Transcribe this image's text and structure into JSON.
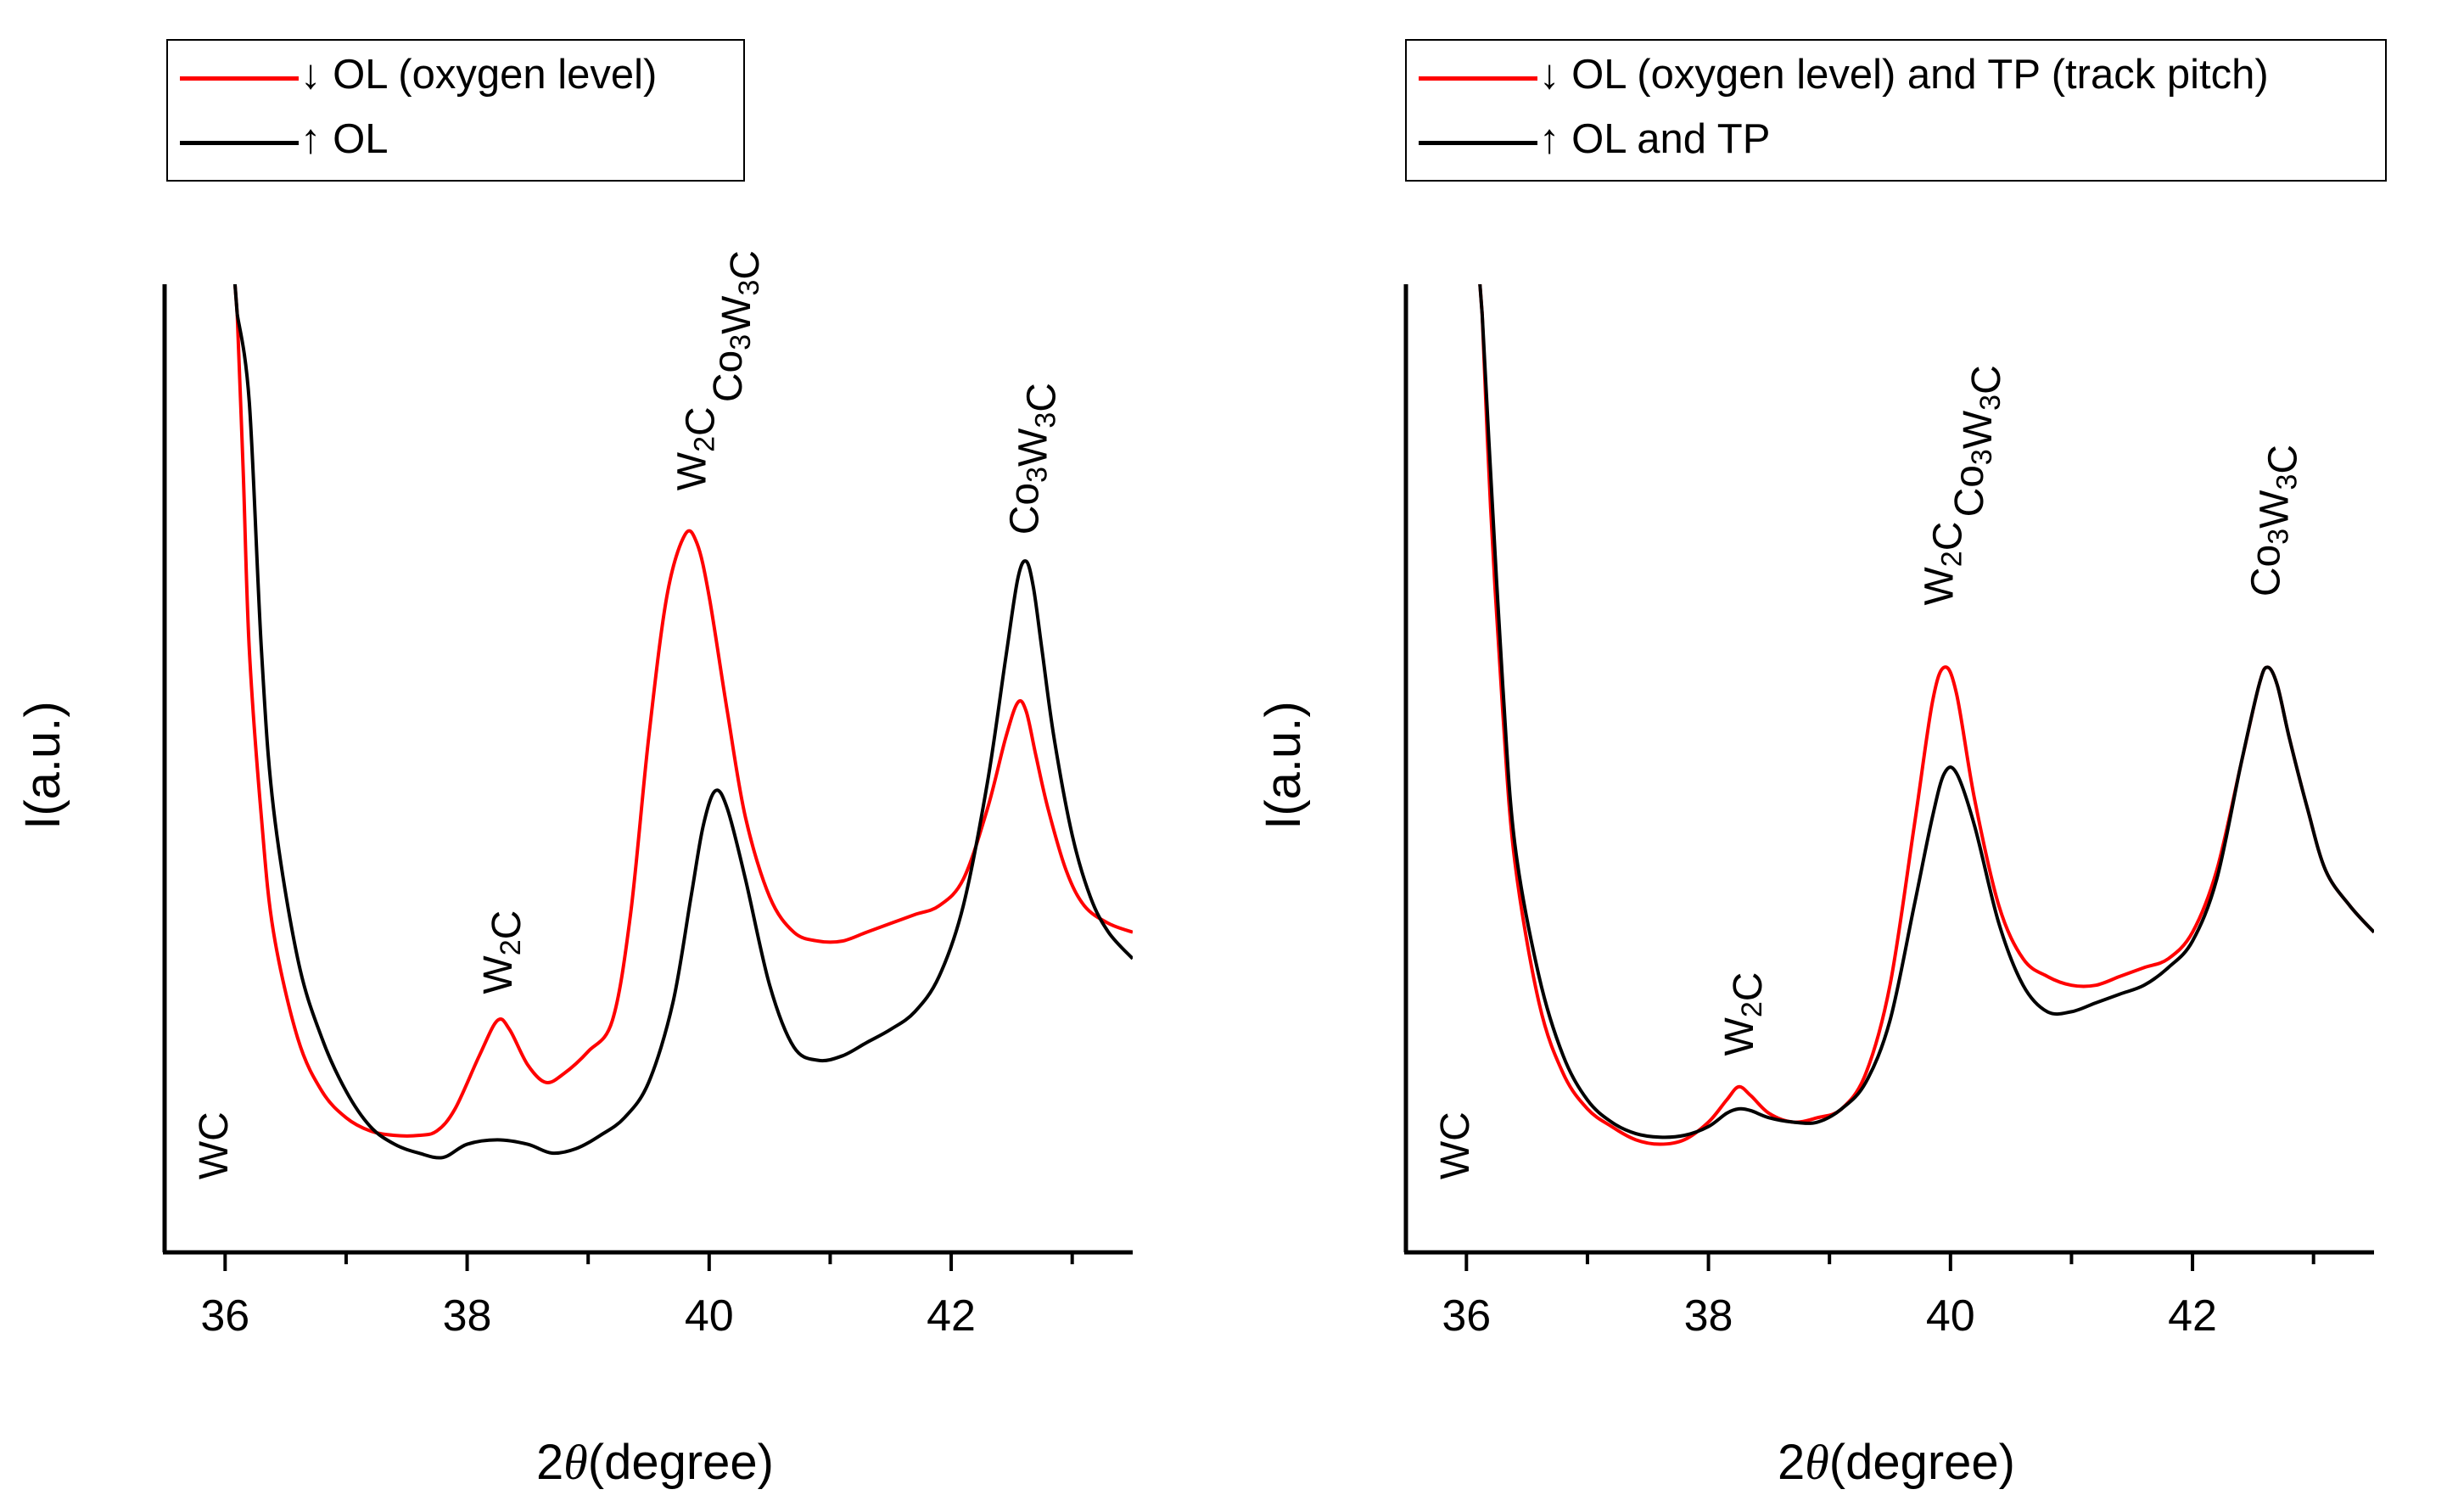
{
  "chart_data": [
    {
      "type": "line",
      "panel": "left",
      "xlabel_prefix": "2",
      "xlabel_symbol": "θ",
      "xlabel_suffix": "(degree)",
      "ylabel": "I(a.u.)",
      "xlim": [
        35.5,
        43.5
      ],
      "ylim": [
        0,
        1
      ],
      "x_ticks": [
        36,
        38,
        40,
        42
      ],
      "y_ticks": [],
      "grid": false,
      "legend_position": "top-left",
      "colors": {
        "red": "#ff0000",
        "black": "#000000"
      },
      "series": [
        {
          "name": "↓ OL (oxygen level)",
          "color": "#ff0000",
          "x": [
            36.1,
            36.15,
            36.2,
            36.3,
            36.4,
            36.6,
            36.8,
            37.0,
            37.2,
            37.4,
            37.6,
            37.75,
            37.9,
            38.1,
            38.25,
            38.35,
            38.5,
            38.65,
            38.8,
            39.0,
            39.2,
            39.35,
            39.5,
            39.65,
            39.8,
            39.9,
            40.0,
            40.15,
            40.3,
            40.5,
            40.7,
            40.9,
            41.1,
            41.3,
            41.5,
            41.7,
            41.9,
            42.1,
            42.3,
            42.45,
            42.55,
            42.62,
            42.7,
            42.8,
            42.95,
            43.1,
            43.3,
            43.5
          ],
          "y": [
            1.0,
            0.82,
            0.62,
            0.43,
            0.3,
            0.18,
            0.12,
            0.09,
            0.075,
            0.07,
            0.07,
            0.075,
            0.1,
            0.16,
            0.2,
            0.19,
            0.15,
            0.13,
            0.14,
            0.165,
            0.2,
            0.32,
            0.52,
            0.68,
            0.75,
            0.74,
            0.68,
            0.55,
            0.43,
            0.34,
            0.3,
            0.29,
            0.29,
            0.3,
            0.31,
            0.32,
            0.33,
            0.36,
            0.44,
            0.52,
            0.56,
            0.55,
            0.5,
            0.44,
            0.37,
            0.33,
            0.31,
            0.3
          ]
        },
        {
          "name": "↑ OL",
          "color": "#000000",
          "x": [
            36.1,
            36.2,
            36.3,
            36.4,
            36.6,
            36.8,
            37.0,
            37.2,
            37.4,
            37.6,
            37.8,
            38.0,
            38.25,
            38.5,
            38.7,
            38.9,
            39.1,
            39.3,
            39.5,
            39.7,
            39.85,
            39.95,
            40.05,
            40.15,
            40.3,
            40.5,
            40.7,
            40.9,
            41.1,
            41.3,
            41.5,
            41.7,
            41.9,
            42.1,
            42.3,
            42.45,
            42.55,
            42.62,
            42.68,
            42.75,
            42.85,
            43.0,
            43.15,
            43.3,
            43.5
          ],
          "y": [
            1.0,
            0.9,
            0.62,
            0.44,
            0.27,
            0.18,
            0.12,
            0.08,
            0.06,
            0.05,
            0.045,
            0.06,
            0.065,
            0.06,
            0.05,
            0.055,
            0.07,
            0.09,
            0.13,
            0.22,
            0.34,
            0.42,
            0.46,
            0.44,
            0.36,
            0.24,
            0.17,
            0.155,
            0.16,
            0.175,
            0.19,
            0.21,
            0.25,
            0.33,
            0.47,
            0.61,
            0.7,
            0.72,
            0.69,
            0.62,
            0.52,
            0.41,
            0.34,
            0.3,
            0.27
          ]
        }
      ],
      "annotations": [
        {
          "label": "WC",
          "x": 35.9,
          "y": 0.02
        },
        {
          "label": "W₂C",
          "x": 38.25,
          "y": 0.23
        },
        {
          "label": "W₂C",
          "x": 39.85,
          "y": 0.8
        },
        {
          "label": "Co₃W₃C",
          "x": 40.15,
          "y": 0.9
        },
        {
          "label": "Co₃W₃C",
          "x": 42.6,
          "y": 0.75
        }
      ]
    },
    {
      "type": "line",
      "panel": "right",
      "xlabel_prefix": "2",
      "xlabel_symbol": "θ",
      "xlabel_suffix": "(degree)",
      "ylabel": "I(a.u.)",
      "xlim": [
        35.5,
        43.5
      ],
      "ylim": [
        0,
        1
      ],
      "x_ticks": [
        36,
        38,
        40,
        42
      ],
      "y_ticks": [],
      "grid": false,
      "legend_position": "top-left",
      "colors": {
        "red": "#ff0000",
        "black": "#000000"
      },
      "series": [
        {
          "name": "↓ OL (oxygen level) and TP (track pitch)",
          "color": "#ff0000",
          "x": [
            36.13,
            36.2,
            36.3,
            36.4,
            36.6,
            36.8,
            37.0,
            37.2,
            37.4,
            37.6,
            37.8,
            38.0,
            38.15,
            38.25,
            38.35,
            38.5,
            38.7,
            38.9,
            39.1,
            39.3,
            39.5,
            39.7,
            39.85,
            39.95,
            40.05,
            40.2,
            40.4,
            40.6,
            40.8,
            41.0,
            41.2,
            41.4,
            41.6,
            41.8,
            42.0,
            42.2,
            42.4,
            42.55,
            42.62,
            42.7,
            42.8,
            42.95,
            43.1,
            43.3,
            43.5
          ],
          "y": [
            1.0,
            0.78,
            0.55,
            0.38,
            0.22,
            0.14,
            0.1,
            0.08,
            0.065,
            0.06,
            0.065,
            0.085,
            0.11,
            0.125,
            0.115,
            0.095,
            0.085,
            0.09,
            0.1,
            0.14,
            0.24,
            0.42,
            0.56,
            0.6,
            0.57,
            0.45,
            0.33,
            0.27,
            0.25,
            0.24,
            0.24,
            0.25,
            0.26,
            0.27,
            0.3,
            0.37,
            0.49,
            0.58,
            0.6,
            0.58,
            0.52,
            0.44,
            0.37,
            0.33,
            0.3
          ]
        },
        {
          "name": "↑ OL and TP",
          "color": "#000000",
          "x": [
            36.13,
            36.2,
            36.3,
            36.4,
            36.6,
            36.8,
            37.0,
            37.2,
            37.4,
            37.6,
            37.8,
            38.0,
            38.15,
            38.25,
            38.35,
            38.5,
            38.7,
            38.9,
            39.1,
            39.3,
            39.5,
            39.7,
            39.85,
            39.95,
            40.05,
            40.2,
            40.4,
            40.6,
            40.8,
            41.0,
            41.2,
            41.4,
            41.6,
            41.8,
            42.0,
            42.2,
            42.4,
            42.55,
            42.62,
            42.7,
            42.8,
            42.95,
            43.1,
            43.3,
            43.5
          ],
          "y": [
            1.0,
            0.82,
            0.58,
            0.4,
            0.25,
            0.16,
            0.11,
            0.085,
            0.072,
            0.068,
            0.07,
            0.08,
            0.095,
            0.1,
            0.098,
            0.09,
            0.085,
            0.085,
            0.1,
            0.13,
            0.2,
            0.33,
            0.43,
            0.48,
            0.48,
            0.42,
            0.31,
            0.24,
            0.21,
            0.21,
            0.22,
            0.23,
            0.24,
            0.26,
            0.29,
            0.36,
            0.49,
            0.58,
            0.6,
            0.58,
            0.52,
            0.44,
            0.37,
            0.33,
            0.3
          ]
        }
      ],
      "annotations": [
        {
          "label": "WC",
          "x": 35.9,
          "y": 0.02
        },
        {
          "label": "W₂C",
          "x": 38.25,
          "y": 0.16
        },
        {
          "label": "W₂C",
          "x": 39.9,
          "y": 0.67
        },
        {
          "label": "Co₃W₃C",
          "x": 40.15,
          "y": 0.77
        },
        {
          "label": "Co₃W₃C",
          "x": 42.6,
          "y": 0.68
        }
      ]
    }
  ]
}
